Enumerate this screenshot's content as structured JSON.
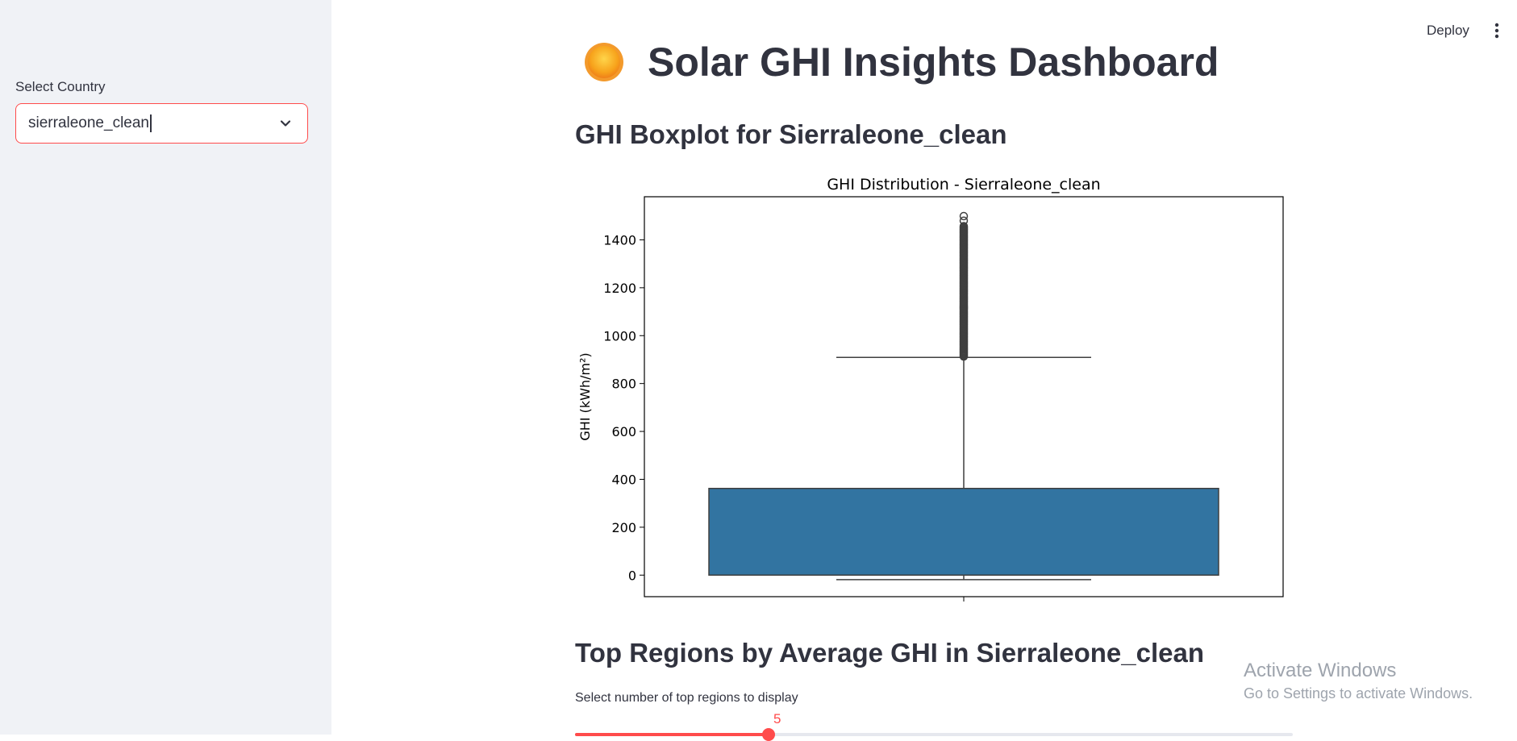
{
  "sidebar": {
    "select_label": "Select Country",
    "select_value": "sierraleone_clean"
  },
  "topbar": {
    "deploy_label": "Deploy",
    "menu_icon": "kebab-menu-icon"
  },
  "main": {
    "title": "Solar GHI Insights Dashboard",
    "title_icon": "sun-icon",
    "boxplot_heading": "GHI Boxplot for Sierraleone_clean",
    "top_regions_heading": "Top Regions by Average GHI in Sierraleone_clean",
    "slider": {
      "label": "Select number of top regions to display",
      "value": "5",
      "fraction": 0.27
    }
  },
  "colors": {
    "accent": "#ff4b4b",
    "box_fill": "#3274a1",
    "sidebar_bg": "#f0f2f6",
    "text": "#31333f"
  },
  "chart_data": {
    "type": "box",
    "title": "GHI Distribution - Sierraleone_clean",
    "xlabel": "",
    "ylabel": "GHI (kWh/m²)",
    "ylim": [
      -90,
      1580
    ],
    "yticks": [
      0,
      200,
      400,
      600,
      800,
      1000,
      1200,
      1400
    ],
    "box": {
      "whisker_low": -19,
      "q1": 0,
      "median": 0,
      "q3": 362,
      "whisker_high": 909,
      "outliers_range": [
        909,
        1499
      ]
    }
  },
  "watermark": {
    "title": "Activate Windows",
    "subtitle": "Go to Settings to activate Windows."
  }
}
